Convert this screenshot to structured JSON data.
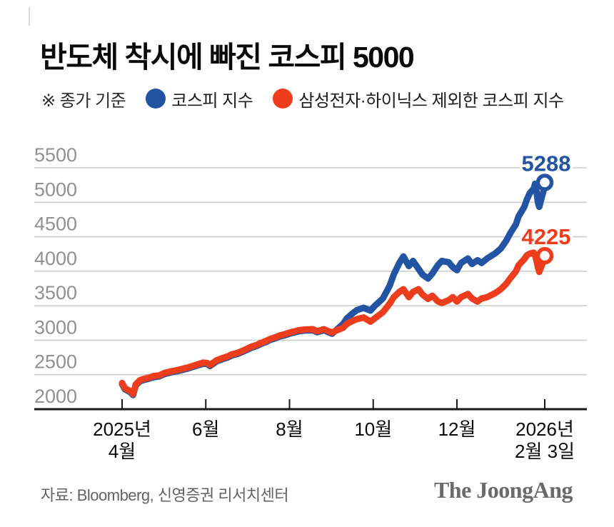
{
  "title": "반도체 착시에 빠진 코스피 5000",
  "legend": {
    "note": "※ 종가 기준",
    "items": [
      {
        "label": "코스피 지수",
        "color": "#2353a3"
      },
      {
        "label": "삼성전자·하이닉스 제외한 코스피 지수",
        "color": "#ee3d1c"
      }
    ]
  },
  "footer": {
    "source": "자료: Bloomberg, 신영증권 리서치센터",
    "brand": "The JoongAng"
  },
  "colors": {
    "kospi_blue": "#2353a3",
    "ex_semis_red": "#ee3d1c",
    "gridline": "#cdcdcd",
    "axis": "#191919",
    "y_label": "#919191",
    "x_label": "#0a0a0a"
  },
  "chart_data": {
    "type": "line",
    "title": "반도체 착시에 빠진 코스피 5000",
    "note": "종가 기준",
    "grid": true,
    "ylim": [
      2000,
      5500
    ],
    "y_ticks": [
      2000,
      2500,
      3000,
      3500,
      4000,
      4500,
      5000,
      5500
    ],
    "x_axis": {
      "start": "2025-04-01",
      "end": "2026-02-03",
      "ticks": [
        {
          "date": "2025-04-01",
          "lines": [
            "2025년",
            "4월"
          ]
        },
        {
          "date": "2025-06-01",
          "lines": [
            "6월"
          ]
        },
        {
          "date": "2025-08-01",
          "lines": [
            "8월"
          ]
        },
        {
          "date": "2025-10-01",
          "lines": [
            "10월"
          ]
        },
        {
          "date": "2025-12-01",
          "lines": [
            "12월"
          ]
        },
        {
          "date": "2026-02-03",
          "lines": [
            "2026년",
            "2월 3일"
          ]
        }
      ]
    },
    "series": [
      {
        "name": "코스피 지수",
        "color": "#2353a3",
        "end_label": "5288",
        "end_value": 5288,
        "points": [
          [
            "2025-04-01",
            2365
          ],
          [
            "2025-04-03",
            2290
          ],
          [
            "2025-04-07",
            2245
          ],
          [
            "2025-04-09",
            2205
          ],
          [
            "2025-04-11",
            2345
          ],
          [
            "2025-04-14",
            2405
          ],
          [
            "2025-04-17",
            2425
          ],
          [
            "2025-04-21",
            2445
          ],
          [
            "2025-04-24",
            2465
          ],
          [
            "2025-04-28",
            2475
          ],
          [
            "2025-05-02",
            2510
          ],
          [
            "2025-05-07",
            2535
          ],
          [
            "2025-05-12",
            2555
          ],
          [
            "2025-05-16",
            2575
          ],
          [
            "2025-05-19",
            2590
          ],
          [
            "2025-05-23",
            2615
          ],
          [
            "2025-05-27",
            2640
          ],
          [
            "2025-05-30",
            2660
          ],
          [
            "2025-06-02",
            2655
          ],
          [
            "2025-06-04",
            2625
          ],
          [
            "2025-06-09",
            2695
          ],
          [
            "2025-06-13",
            2725
          ],
          [
            "2025-06-17",
            2750
          ],
          [
            "2025-06-20",
            2780
          ],
          [
            "2025-06-24",
            2800
          ],
          [
            "2025-06-27",
            2825
          ],
          [
            "2025-07-01",
            2860
          ],
          [
            "2025-07-04",
            2890
          ],
          [
            "2025-07-08",
            2915
          ],
          [
            "2025-07-11",
            2945
          ],
          [
            "2025-07-15",
            2975
          ],
          [
            "2025-07-18",
            3005
          ],
          [
            "2025-07-22",
            3030
          ],
          [
            "2025-07-25",
            3055
          ],
          [
            "2025-07-29",
            3075
          ],
          [
            "2025-08-01",
            3095
          ],
          [
            "2025-08-05",
            3115
          ],
          [
            "2025-08-08",
            3130
          ],
          [
            "2025-08-12",
            3140
          ],
          [
            "2025-08-18",
            3145
          ],
          [
            "2025-08-21",
            3115
          ],
          [
            "2025-08-26",
            3145
          ],
          [
            "2025-09-01",
            3095
          ],
          [
            "2025-09-04",
            3145
          ],
          [
            "2025-09-09",
            3235
          ],
          [
            "2025-09-12",
            3320
          ],
          [
            "2025-09-16",
            3390
          ],
          [
            "2025-09-19",
            3435
          ],
          [
            "2025-09-24",
            3470
          ],
          [
            "2025-09-29",
            3430
          ],
          [
            "2025-10-02",
            3495
          ],
          [
            "2025-10-08",
            3605
          ],
          [
            "2025-10-13",
            3790
          ],
          [
            "2025-10-16",
            3955
          ],
          [
            "2025-10-20",
            4120
          ],
          [
            "2025-10-23",
            4215
          ],
          [
            "2025-10-27",
            4075
          ],
          [
            "2025-10-30",
            4150
          ],
          [
            "2025-11-03",
            4035
          ],
          [
            "2025-11-06",
            3950
          ],
          [
            "2025-11-10",
            3895
          ],
          [
            "2025-11-13",
            3965
          ],
          [
            "2025-11-17",
            4085
          ],
          [
            "2025-11-20",
            4150
          ],
          [
            "2025-11-25",
            4130
          ],
          [
            "2025-11-28",
            4060
          ],
          [
            "2025-12-01",
            4015
          ],
          [
            "2025-12-04",
            4120
          ],
          [
            "2025-12-09",
            4185
          ],
          [
            "2025-12-12",
            4105
          ],
          [
            "2025-12-16",
            4160
          ],
          [
            "2025-12-19",
            4120
          ],
          [
            "2025-12-23",
            4185
          ],
          [
            "2025-12-29",
            4260
          ],
          [
            "2026-01-02",
            4330
          ],
          [
            "2026-01-06",
            4445
          ],
          [
            "2026-01-09",
            4555
          ],
          [
            "2026-01-13",
            4680
          ],
          [
            "2026-01-15",
            4800
          ],
          [
            "2026-01-19",
            4930
          ],
          [
            "2026-01-21",
            5040
          ],
          [
            "2026-01-23",
            5130
          ],
          [
            "2026-01-26",
            5200
          ],
          [
            "2026-01-27",
            5270
          ],
          [
            "2026-01-28",
            5150
          ],
          [
            "2026-01-29",
            5000
          ],
          [
            "2026-01-30",
            4935
          ],
          [
            "2026-02-02",
            5160
          ],
          [
            "2026-02-03",
            5288
          ]
        ]
      },
      {
        "name": "삼성전자·하이닉스 제외한 코스피 지수",
        "color": "#ee3d1c",
        "end_label": "4225",
        "end_value": 4225,
        "points": [
          [
            "2025-04-01",
            2380
          ],
          [
            "2025-04-03",
            2305
          ],
          [
            "2025-04-07",
            2260
          ],
          [
            "2025-04-09",
            2220
          ],
          [
            "2025-04-11",
            2360
          ],
          [
            "2025-04-14",
            2420
          ],
          [
            "2025-04-17",
            2440
          ],
          [
            "2025-04-21",
            2460
          ],
          [
            "2025-04-24",
            2480
          ],
          [
            "2025-04-28",
            2490
          ],
          [
            "2025-05-02",
            2525
          ],
          [
            "2025-05-07",
            2550
          ],
          [
            "2025-05-12",
            2570
          ],
          [
            "2025-05-16",
            2590
          ],
          [
            "2025-05-19",
            2605
          ],
          [
            "2025-05-23",
            2630
          ],
          [
            "2025-05-27",
            2655
          ],
          [
            "2025-05-30",
            2675
          ],
          [
            "2025-06-02",
            2670
          ],
          [
            "2025-06-04",
            2640
          ],
          [
            "2025-06-09",
            2710
          ],
          [
            "2025-06-13",
            2740
          ],
          [
            "2025-06-17",
            2765
          ],
          [
            "2025-06-20",
            2795
          ],
          [
            "2025-06-24",
            2815
          ],
          [
            "2025-06-27",
            2840
          ],
          [
            "2025-07-01",
            2875
          ],
          [
            "2025-07-04",
            2905
          ],
          [
            "2025-07-08",
            2930
          ],
          [
            "2025-07-11",
            2960
          ],
          [
            "2025-07-15",
            2990
          ],
          [
            "2025-07-18",
            3020
          ],
          [
            "2025-07-22",
            3045
          ],
          [
            "2025-07-25",
            3070
          ],
          [
            "2025-07-29",
            3090
          ],
          [
            "2025-08-01",
            3110
          ],
          [
            "2025-08-05",
            3130
          ],
          [
            "2025-08-08",
            3145
          ],
          [
            "2025-08-12",
            3155
          ],
          [
            "2025-08-18",
            3160
          ],
          [
            "2025-08-21",
            3130
          ],
          [
            "2025-08-26",
            3160
          ],
          [
            "2025-09-01",
            3110
          ],
          [
            "2025-09-04",
            3140
          ],
          [
            "2025-09-09",
            3180
          ],
          [
            "2025-09-12",
            3240
          ],
          [
            "2025-09-16",
            3280
          ],
          [
            "2025-09-19",
            3305
          ],
          [
            "2025-09-24",
            3330
          ],
          [
            "2025-09-29",
            3270
          ],
          [
            "2025-10-02",
            3315
          ],
          [
            "2025-10-08",
            3405
          ],
          [
            "2025-10-13",
            3530
          ],
          [
            "2025-10-16",
            3625
          ],
          [
            "2025-10-20",
            3700
          ],
          [
            "2025-10-23",
            3740
          ],
          [
            "2025-10-27",
            3625
          ],
          [
            "2025-10-30",
            3700
          ],
          [
            "2025-11-03",
            3740
          ],
          [
            "2025-11-06",
            3660
          ],
          [
            "2025-11-10",
            3600
          ],
          [
            "2025-11-13",
            3645
          ],
          [
            "2025-11-17",
            3565
          ],
          [
            "2025-11-20",
            3540
          ],
          [
            "2025-11-25",
            3580
          ],
          [
            "2025-11-28",
            3625
          ],
          [
            "2025-12-01",
            3560
          ],
          [
            "2025-12-04",
            3625
          ],
          [
            "2025-12-09",
            3670
          ],
          [
            "2025-12-12",
            3605
          ],
          [
            "2025-12-16",
            3560
          ],
          [
            "2025-12-19",
            3605
          ],
          [
            "2025-12-23",
            3625
          ],
          [
            "2025-12-29",
            3685
          ],
          [
            "2026-01-02",
            3740
          ],
          [
            "2026-01-06",
            3820
          ],
          [
            "2026-01-09",
            3900
          ],
          [
            "2026-01-13",
            4000
          ],
          [
            "2026-01-15",
            4090
          ],
          [
            "2026-01-19",
            4175
          ],
          [
            "2026-01-21",
            4230
          ],
          [
            "2026-01-23",
            4255
          ],
          [
            "2026-01-26",
            4270
          ],
          [
            "2026-01-27",
            4230
          ],
          [
            "2026-01-28",
            4150
          ],
          [
            "2026-01-29",
            4060
          ],
          [
            "2026-01-30",
            3990
          ],
          [
            "2026-02-02",
            4145
          ],
          [
            "2026-02-03",
            4225
          ]
        ]
      }
    ]
  }
}
